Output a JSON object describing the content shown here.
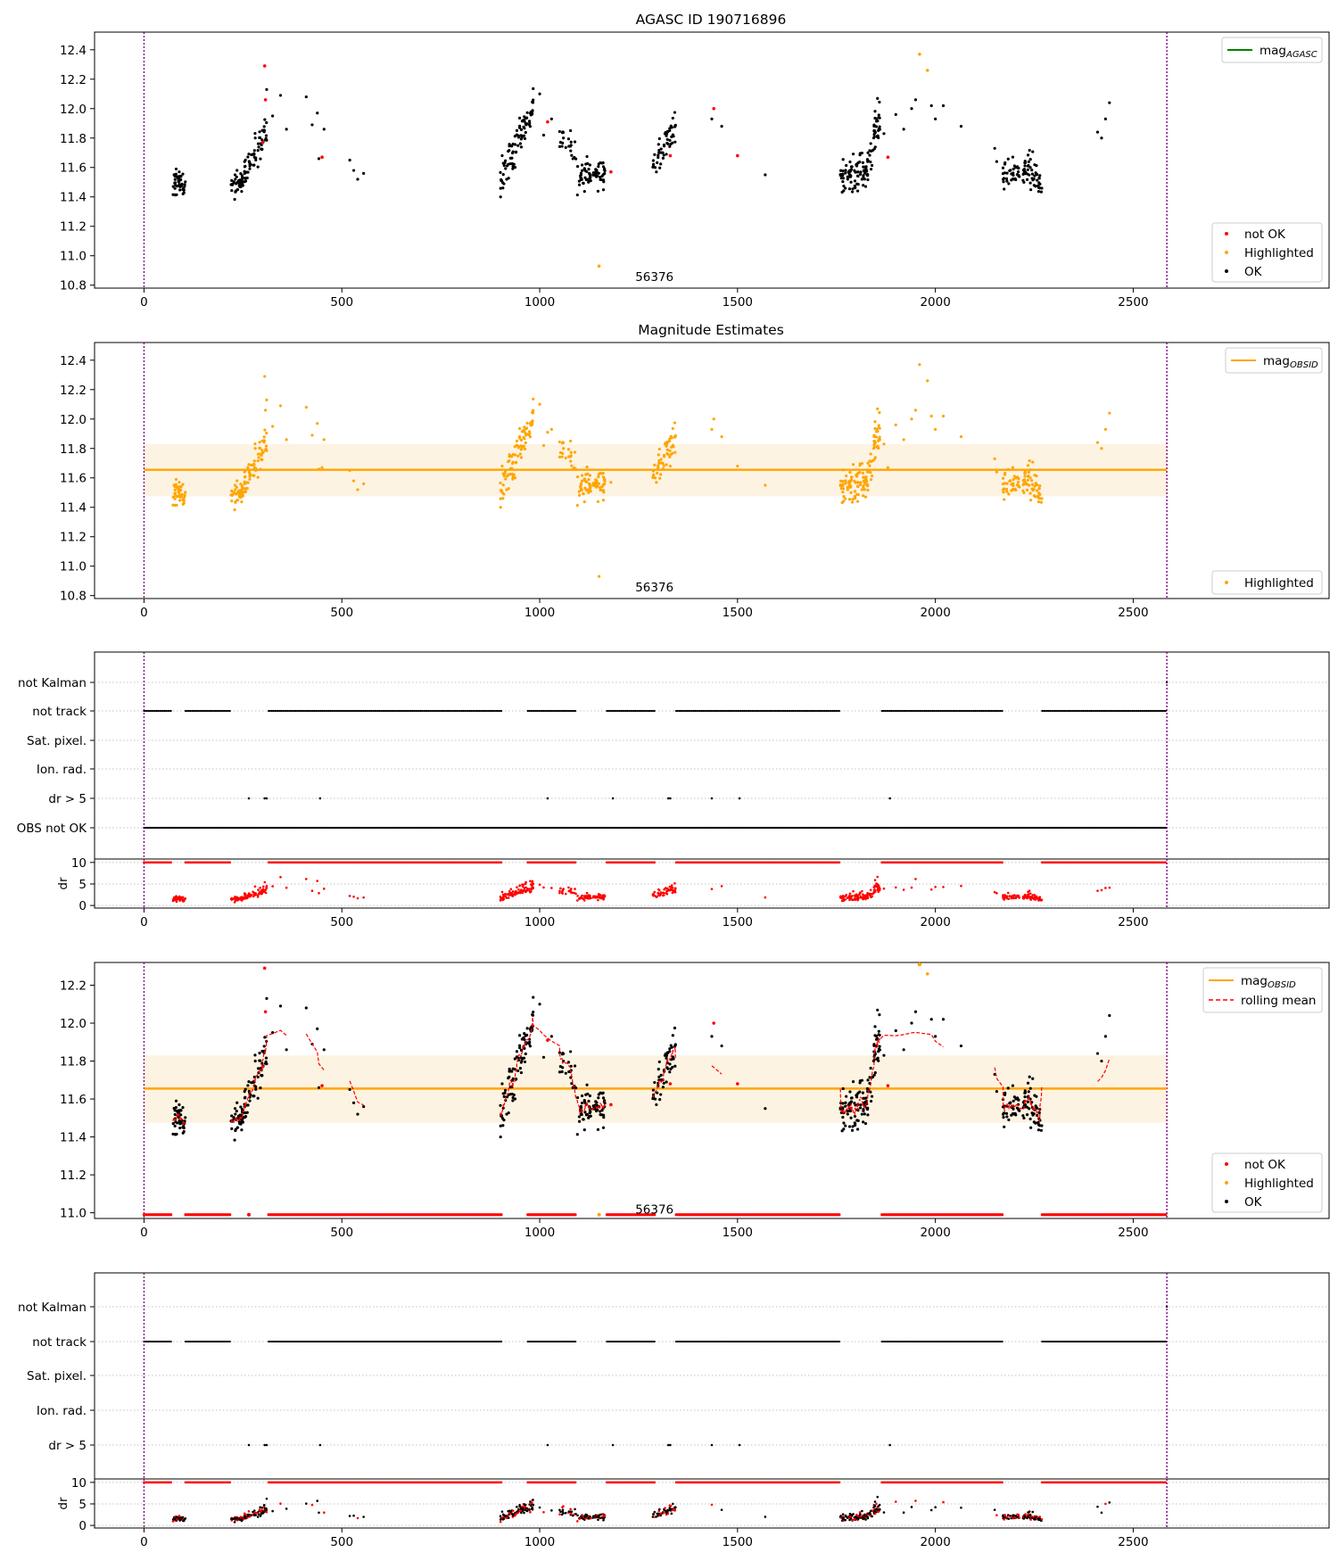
{
  "figure": {
    "title": "AGASC ID 190716896",
    "subtitle": "Magnitude Estimates",
    "obsid_label": "56376"
  },
  "colors": {
    "ok": "#000000",
    "not_ok": "#ff0000",
    "highlighted": "#ffa500",
    "mag_agasc": "#008000",
    "mag_obsid": "#ffa500",
    "band": "#fdf3e2",
    "boundary": "#800080",
    "rolling_mean": "#ff0000",
    "grid": "#b0b0b0"
  },
  "x_axis": {
    "ticks": [
      0,
      500,
      1000,
      1500,
      2000,
      2500
    ],
    "xlim": [
      -125,
      2995
    ],
    "boundaries": [
      0,
      2585
    ]
  },
  "chart_data": [
    {
      "id": "mag_agasc_panel",
      "type": "scatter",
      "title": "AGASC ID 190716896",
      "xlim": [
        -125,
        2995
      ],
      "ylim": [
        10.78,
        12.52
      ],
      "y_ticks": [
        10.8,
        11.0,
        11.2,
        11.4,
        11.6,
        11.8,
        12.0,
        12.2,
        12.4
      ],
      "grid": false,
      "legend_line": {
        "label": "mag",
        "sub": "AGASC",
        "position": "top-right"
      },
      "legend_points": {
        "entries": [
          "not OK",
          "Highlighted",
          "OK"
        ],
        "position": "bottom-right"
      },
      "annotation": {
        "text": "56376",
        "x": 1290,
        "y": 10.86
      },
      "outliers": {
        "not_ok": [
          [
            305,
            12.29
          ],
          [
            307,
            12.06
          ],
          [
            300,
            11.77
          ],
          [
            450,
            11.67
          ],
          [
            1020,
            11.91
          ],
          [
            1440,
            12.0
          ],
          [
            1500,
            11.68
          ],
          [
            1880,
            11.67
          ],
          [
            1180,
            11.57
          ],
          [
            1330,
            11.68
          ]
        ],
        "highlighted": [
          [
            1150,
            10.93
          ],
          [
            1960,
            12.37
          ],
          [
            1980,
            12.26
          ]
        ]
      }
    },
    {
      "id": "mag_obsid_panel",
      "type": "scatter",
      "title": "Magnitude Estimates",
      "xlim": [
        -125,
        2995
      ],
      "ylim": [
        10.78,
        12.52
      ],
      "y_ticks": [
        10.8,
        11.0,
        11.2,
        11.4,
        11.6,
        11.8,
        12.0,
        12.2,
        12.4
      ],
      "grid": false,
      "mag_obsid": 11.655,
      "band": [
        11.475,
        11.83
      ],
      "legend_line": {
        "label": "mag",
        "sub": "OBSID",
        "position": "top-right"
      },
      "legend_points": {
        "entries": [
          "Highlighted"
        ],
        "position": "bottom-right"
      },
      "annotation": {
        "text": "56376",
        "x": 1290,
        "y": 10.86
      }
    },
    {
      "id": "flags_panel_1",
      "type": "scatter",
      "categories": [
        "not Kalman",
        "not track",
        "Sat. pixel.",
        "Ion. rad.",
        "dr > 5",
        "OBS not OK"
      ],
      "xlim": [
        -125,
        2995
      ],
      "grid": true,
      "not_track_segments": [
        [
          0,
          70
        ],
        [
          105,
          220
        ],
        [
          315,
          905
        ],
        [
          970,
          1090
        ],
        [
          1170,
          1290
        ],
        [
          1345,
          1760
        ],
        [
          1865,
          2170
        ],
        [
          2270,
          2585
        ]
      ],
      "dr_gt5_x": [
        265,
        305,
        310,
        445,
        1020,
        1185,
        1325,
        1330,
        1435,
        1505,
        1885
      ],
      "obs_not_ok_range": [
        0,
        2585
      ]
    },
    {
      "id": "dr_panel_1",
      "type": "scatter",
      "ylabel": "dr",
      "xlim": [
        -125,
        2995
      ],
      "ylim": [
        -0.6,
        10.8
      ],
      "y_ticks": [
        0,
        5,
        10
      ],
      "grid": true
    },
    {
      "id": "mag_rolling_panel",
      "type": "scatter",
      "xlim": [
        -125,
        2995
      ],
      "ylim": [
        10.97,
        12.32
      ],
      "y_ticks": [
        11.0,
        11.2,
        11.4,
        11.6,
        11.8,
        12.0,
        12.2
      ],
      "grid": false,
      "mag_obsid": 11.655,
      "band": [
        11.475,
        11.83
      ],
      "legend_line": {
        "entries": [
          {
            "label": "mag",
            "sub": "OBSID"
          },
          {
            "label": "rolling mean"
          }
        ],
        "position": "top-right"
      },
      "legend_points": {
        "entries": [
          "not OK",
          "Highlighted",
          "OK"
        ],
        "position": "bottom-right"
      },
      "annotation": {
        "text": "56376",
        "x": 1290,
        "y": 11.02
      }
    },
    {
      "id": "flags_panel_2",
      "type": "scatter",
      "categories": [
        "not Kalman",
        "not track",
        "Sat. pixel.",
        "Ion. rad.",
        "dr > 5"
      ],
      "xlim": [
        -125,
        2995
      ],
      "grid": true,
      "not_track_segments": [
        [
          0,
          70
        ],
        [
          105,
          220
        ],
        [
          315,
          905
        ],
        [
          970,
          1090
        ],
        [
          1170,
          1290
        ],
        [
          1345,
          1760
        ],
        [
          1865,
          2170
        ],
        [
          2270,
          2585
        ]
      ],
      "dr_gt5_x": [
        265,
        305,
        310,
        445,
        1020,
        1185,
        1325,
        1330,
        1435,
        1505,
        1885
      ]
    },
    {
      "id": "dr_panel_2",
      "type": "scatter",
      "ylabel": "dr",
      "xlim": [
        -125,
        2995
      ],
      "ylim": [
        -0.6,
        10.8
      ],
      "y_ticks": [
        0,
        5,
        10
      ],
      "grid": true
    }
  ]
}
